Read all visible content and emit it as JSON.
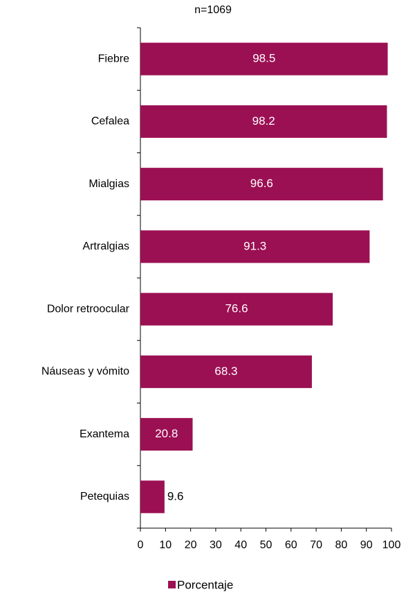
{
  "chart_data": {
    "type": "barh",
    "title": "n=1069",
    "categories": [
      "Fiebre",
      "Cefalea",
      "Mialgias",
      "Artralgias",
      "Dolor retroocular",
      "Náuseas y vómito",
      "Exantema",
      "Petequias"
    ],
    "series": [
      {
        "name": "Porcentaje",
        "color": "#9b1053",
        "values": [
          98.5,
          98.2,
          96.6,
          91.3,
          76.6,
          68.3,
          20.8,
          9.6
        ]
      }
    ],
    "xlim": [
      0,
      100
    ],
    "xticks": [
      0,
      10,
      20,
      30,
      40,
      50,
      60,
      70,
      80,
      90,
      100
    ],
    "legend": "bottom",
    "grid": false
  }
}
